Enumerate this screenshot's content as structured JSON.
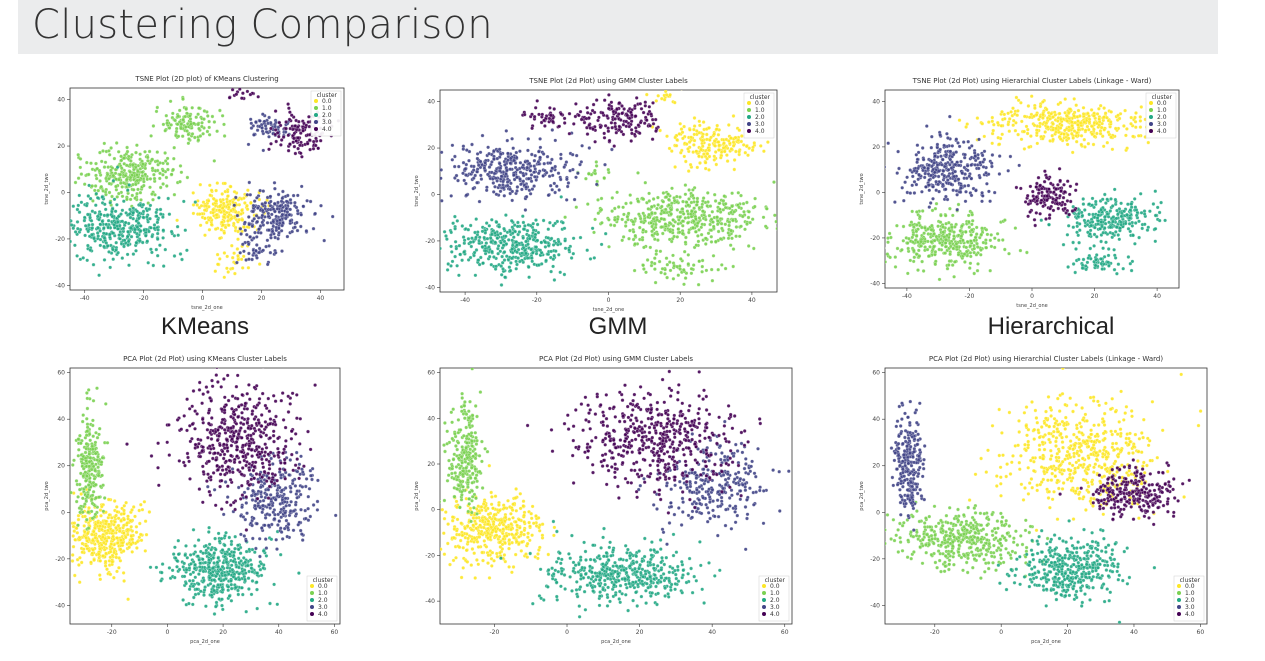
{
  "page": {
    "title": "Clustering Comparison"
  },
  "labels": {
    "kmeans": "KMeans",
    "gmm": "GMM",
    "hierarchical": "Hierarchical"
  },
  "palette": {
    "0.0": "#fde725",
    "1.0": "#7ad151",
    "2.0": "#22a884",
    "3.0": "#414487",
    "4.0": "#440154"
  },
  "chart_data": [
    {
      "type": "scatter",
      "title": "TSNE Plot (2D plot) of KMeans Clustering",
      "xlabel": "tsne_2d_one",
      "ylabel": "tsne_2d_two",
      "xlim": [
        -45,
        48
      ],
      "ylim": [
        -42,
        45
      ],
      "xticks": [
        -40,
        -20,
        0,
        20,
        40
      ],
      "yticks": [
        -40,
        -20,
        0,
        20,
        40
      ],
      "legend_title": "cluster",
      "legend_position": "top-right",
      "series": [
        {
          "name": "0.0",
          "color": "#fde725",
          "clusters": [
            [
              8,
              -8,
              7,
              7,
              220
            ],
            [
              10,
              -30,
              4,
              5,
              30
            ]
          ]
        },
        {
          "name": "1.0",
          "color": "#7ad151",
          "clusters": [
            [
              -25,
              8,
              10,
              7,
              300
            ],
            [
              -5,
              30,
              7,
              6,
              120
            ]
          ]
        },
        {
          "name": "2.0",
          "color": "#22a884",
          "clusters": [
            [
              -28,
              -15,
              12,
              9,
              400
            ]
          ]
        },
        {
          "name": "3.0",
          "color": "#414487",
          "clusters": [
            [
              25,
              -10,
              8,
              7,
              220
            ],
            [
              22,
              28,
              5,
              4,
              60
            ],
            [
              18,
              -25,
              4,
              4,
              40
            ]
          ]
        },
        {
          "name": "4.0",
          "color": "#440154",
          "clusters": [
            [
              33,
              25,
              6,
              6,
              120
            ],
            [
              13,
              42,
              3,
              2,
              15
            ]
          ]
        }
      ]
    },
    {
      "type": "scatter",
      "title": "TSNE Plot (2d Plot) using GMM Cluster Labels",
      "xlabel": "tsne_2d_one",
      "ylabel": "tsne_2d_two",
      "xlim": [
        -47,
        47
      ],
      "ylim": [
        -42,
        45
      ],
      "xticks": [
        -40,
        -20,
        0,
        20,
        40
      ],
      "yticks": [
        -40,
        -20,
        0,
        20,
        40
      ],
      "legend_title": "cluster",
      "legend_position": "top-right",
      "series": [
        {
          "name": "0.0",
          "color": "#fde725",
          "clusters": [
            [
              28,
              22,
              8,
              6,
              200
            ],
            [
              16,
              42,
              3,
              2,
              15
            ]
          ]
        },
        {
          "name": "1.0",
          "color": "#7ad151",
          "clusters": [
            [
              22,
              -10,
              16,
              8,
              500
            ],
            [
              20,
              -32,
              8,
              4,
              60
            ],
            [
              -3,
              10,
              3,
              2,
              15
            ]
          ]
        },
        {
          "name": "2.0",
          "color": "#22a884",
          "clusters": [
            [
              -27,
              -22,
              12,
              8,
              400
            ]
          ]
        },
        {
          "name": "3.0",
          "color": "#414487",
          "clusters": [
            [
              -27,
              10,
              12,
              8,
              350
            ]
          ]
        },
        {
          "name": "4.0",
          "color": "#440154",
          "clusters": [
            [
              3,
              33,
              8,
              6,
              160
            ],
            [
              -17,
              33,
              4,
              3,
              40
            ]
          ]
        }
      ]
    },
    {
      "type": "scatter",
      "title": "TSNE Plot (2d Plot) using Hierarchial Cluster Labels (Linkage - Ward)",
      "xlabel": "tsne_2d_one",
      "ylabel": "tsne_2d_two",
      "xlim": [
        -47,
        47
      ],
      "ylim": [
        -42,
        45
      ],
      "xticks": [
        -40,
        -20,
        0,
        20,
        40
      ],
      "yticks": [
        -40,
        -20,
        0,
        20,
        40
      ],
      "legend_title": "cluster",
      "legend_position": "top-right",
      "series": [
        {
          "name": "0.0",
          "color": "#fde725",
          "clusters": [
            [
              12,
              30,
              16,
              6,
              400
            ]
          ]
        },
        {
          "name": "1.0",
          "color": "#7ad151",
          "clusters": [
            [
              -28,
              -20,
              12,
              8,
              380
            ]
          ]
        },
        {
          "name": "2.0",
          "color": "#22a884",
          "clusters": [
            [
              25,
              -12,
              10,
              7,
              260
            ],
            [
              22,
              -30,
              6,
              4,
              60
            ]
          ]
        },
        {
          "name": "3.0",
          "color": "#414487",
          "clusters": [
            [
              -27,
              10,
              10,
              9,
              330
            ]
          ]
        },
        {
          "name": "4.0",
          "color": "#440154",
          "clusters": [
            [
              5,
              -2,
              5,
              6,
              140
            ]
          ]
        }
      ]
    },
    {
      "type": "scatter",
      "title": "PCA Plot (2d Plot) using KMeans Cluster Labels",
      "xlabel": "pca_2d_one",
      "ylabel": "pca_2d_two",
      "xlim": [
        -35,
        62
      ],
      "ylim": [
        -48,
        62
      ],
      "xticks": [
        -20,
        0,
        20,
        40,
        60
      ],
      "yticks": [
        -40,
        -20,
        0,
        20,
        40,
        60
      ],
      "legend_title": "cluster",
      "legend_position": "bottom-right",
      "series": [
        {
          "name": "0.0",
          "color": "#fde725",
          "clusters": [
            [
              -22,
              -10,
              8,
              10,
              420
            ]
          ]
        },
        {
          "name": "1.0",
          "color": "#7ad151",
          "clusters": [
            [
              -28,
              20,
              3,
              14,
              260
            ]
          ]
        },
        {
          "name": "2.0",
          "color": "#22a884",
          "clusters": [
            [
              18,
              -25,
              11,
              9,
              450
            ]
          ]
        },
        {
          "name": "3.0",
          "color": "#414487",
          "clusters": [
            [
              38,
              5,
              10,
              12,
              280
            ]
          ]
        },
        {
          "name": "4.0",
          "color": "#440154",
          "clusters": [
            [
              25,
              30,
              14,
              16,
              500
            ]
          ]
        }
      ]
    },
    {
      "type": "scatter",
      "title": "PCA Plot (2d Plot) using GMM Cluster Labels",
      "xlabel": "pca_2d_one",
      "ylabel": "pca_2d_two",
      "xlim": [
        -35,
        62
      ],
      "ylim": [
        -50,
        62
      ],
      "xticks": [
        -20,
        0,
        20,
        40,
        60
      ],
      "yticks": [
        -40,
        -20,
        0,
        20,
        40,
        60
      ],
      "legend_title": "cluster",
      "legend_position": "bottom-right",
      "series": [
        {
          "name": "0.0",
          "color": "#fde725",
          "clusters": [
            [
              -20,
              -8,
              9,
              10,
              420
            ]
          ]
        },
        {
          "name": "1.0",
          "color": "#7ad151",
          "clusters": [
            [
              -28,
              22,
              3,
              14,
              260
            ]
          ]
        },
        {
          "name": "2.0",
          "color": "#22a884",
          "clusters": [
            [
              15,
              -28,
              14,
              9,
              450
            ]
          ]
        },
        {
          "name": "3.0",
          "color": "#414487",
          "clusters": [
            [
              40,
              10,
              10,
              12,
              280
            ]
          ]
        },
        {
          "name": "4.0",
          "color": "#440154",
          "clusters": [
            [
              25,
              30,
              14,
              14,
              500
            ]
          ]
        }
      ]
    },
    {
      "type": "scatter",
      "title": "PCA Plot (2d Plot) using Hierarchial Cluster Labels (Linkage - Ward)",
      "xlabel": "pca_2d_one",
      "ylabel": "pca_2d_two",
      "xlim": [
        -35,
        62
      ],
      "ylim": [
        -48,
        62
      ],
      "xticks": [
        -20,
        0,
        20,
        40,
        60
      ],
      "yticks": [
        -40,
        -20,
        0,
        20,
        40,
        60
      ],
      "legend_title": "cluster",
      "legend_position": "bottom-right",
      "series": [
        {
          "name": "0.0",
          "color": "#fde725",
          "clusters": [
            [
              25,
              25,
              16,
              16,
              550
            ]
          ]
        },
        {
          "name": "1.0",
          "color": "#7ad151",
          "clusters": [
            [
              -12,
              -12,
              12,
              8,
              420
            ]
          ]
        },
        {
          "name": "2.0",
          "color": "#22a884",
          "clusters": [
            [
              20,
              -25,
              10,
              9,
              400
            ]
          ]
        },
        {
          "name": "3.0",
          "color": "#414487",
          "clusters": [
            [
              -28,
              20,
              3,
              14,
              250
            ]
          ]
        },
        {
          "name": "4.0",
          "color": "#440154",
          "clusters": [
            [
              40,
              8,
              9,
              7,
              260
            ]
          ]
        }
      ]
    }
  ]
}
